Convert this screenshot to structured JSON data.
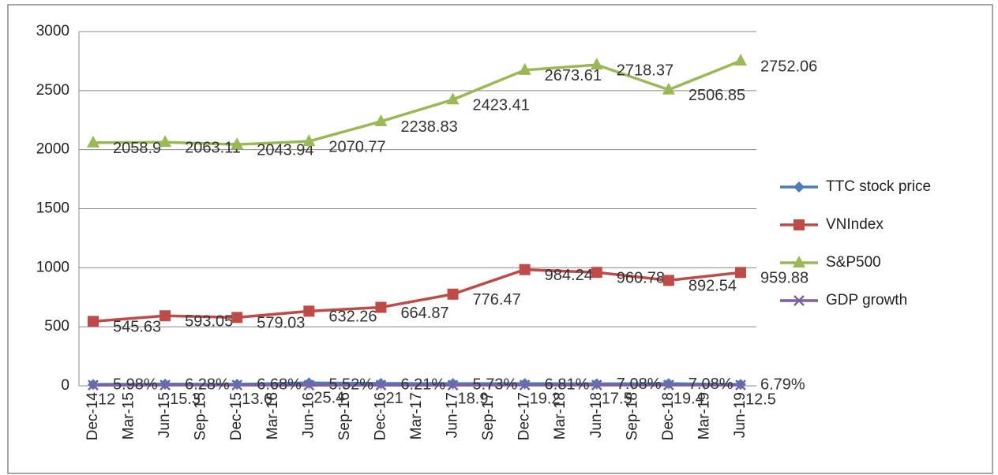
{
  "chart_data": {
    "type": "line",
    "x": [
      "Dec-14",
      "Jun-15",
      "Dec-15",
      "Jun-16",
      "Dec-16",
      "Jun-17",
      "Dec-17",
      "Jun-18",
      "Dec-18",
      "Jun-19"
    ],
    "xticks": [
      "Dec-14",
      "Mar-15",
      "Jun-15",
      "Sep-15",
      "Dec-15",
      "Mar-16",
      "Jun-16",
      "Sep-16",
      "Dec-16",
      "Mar-17",
      "Jun-17",
      "Sep-17",
      "Dec-17",
      "Mar-18",
      "Jun-18",
      "Sep-18",
      "Dec-18",
      "Mar-19",
      "Jun-19"
    ],
    "ylim": [
      0,
      3000
    ],
    "yticks": [
      0,
      500,
      1000,
      1500,
      2000,
      2500,
      3000
    ],
    "grid": true,
    "legend": "right",
    "series": [
      {
        "name": "TTC stock price",
        "color": "#4a7ebb",
        "marker": "diamond",
        "values": [
          12,
          15.3,
          13.6,
          25.4,
          21,
          18.9,
          19.2,
          17.5,
          19.4,
          12.5
        ]
      },
      {
        "name": "VNIndex",
        "color": "#be4b48",
        "marker": "square",
        "values": [
          545.63,
          593.05,
          579.03,
          632.26,
          664.87,
          776.47,
          984.24,
          960.78,
          892.54,
          959.88
        ]
      },
      {
        "name": "S&P500",
        "color": "#98b954",
        "marker": "triangle",
        "values": [
          2058.9,
          2063.11,
          2043.94,
          2070.77,
          2238.83,
          2423.41,
          2673.61,
          2718.37,
          2506.85,
          2752.06
        ]
      },
      {
        "name": "GDP growth",
        "color": "#7d60a0",
        "marker": "x",
        "values": [
          5.98,
          6.28,
          6.68,
          5.52,
          6.21,
          5.73,
          6.81,
          7.08,
          7.08,
          6.79
        ],
        "value_labels": [
          "5.98%",
          "6.28%",
          "6.68%",
          "5.52%",
          "6.21%",
          "5.73%",
          "6.81%",
          "7.08%",
          "7.08%",
          "6.79%"
        ]
      }
    ]
  }
}
